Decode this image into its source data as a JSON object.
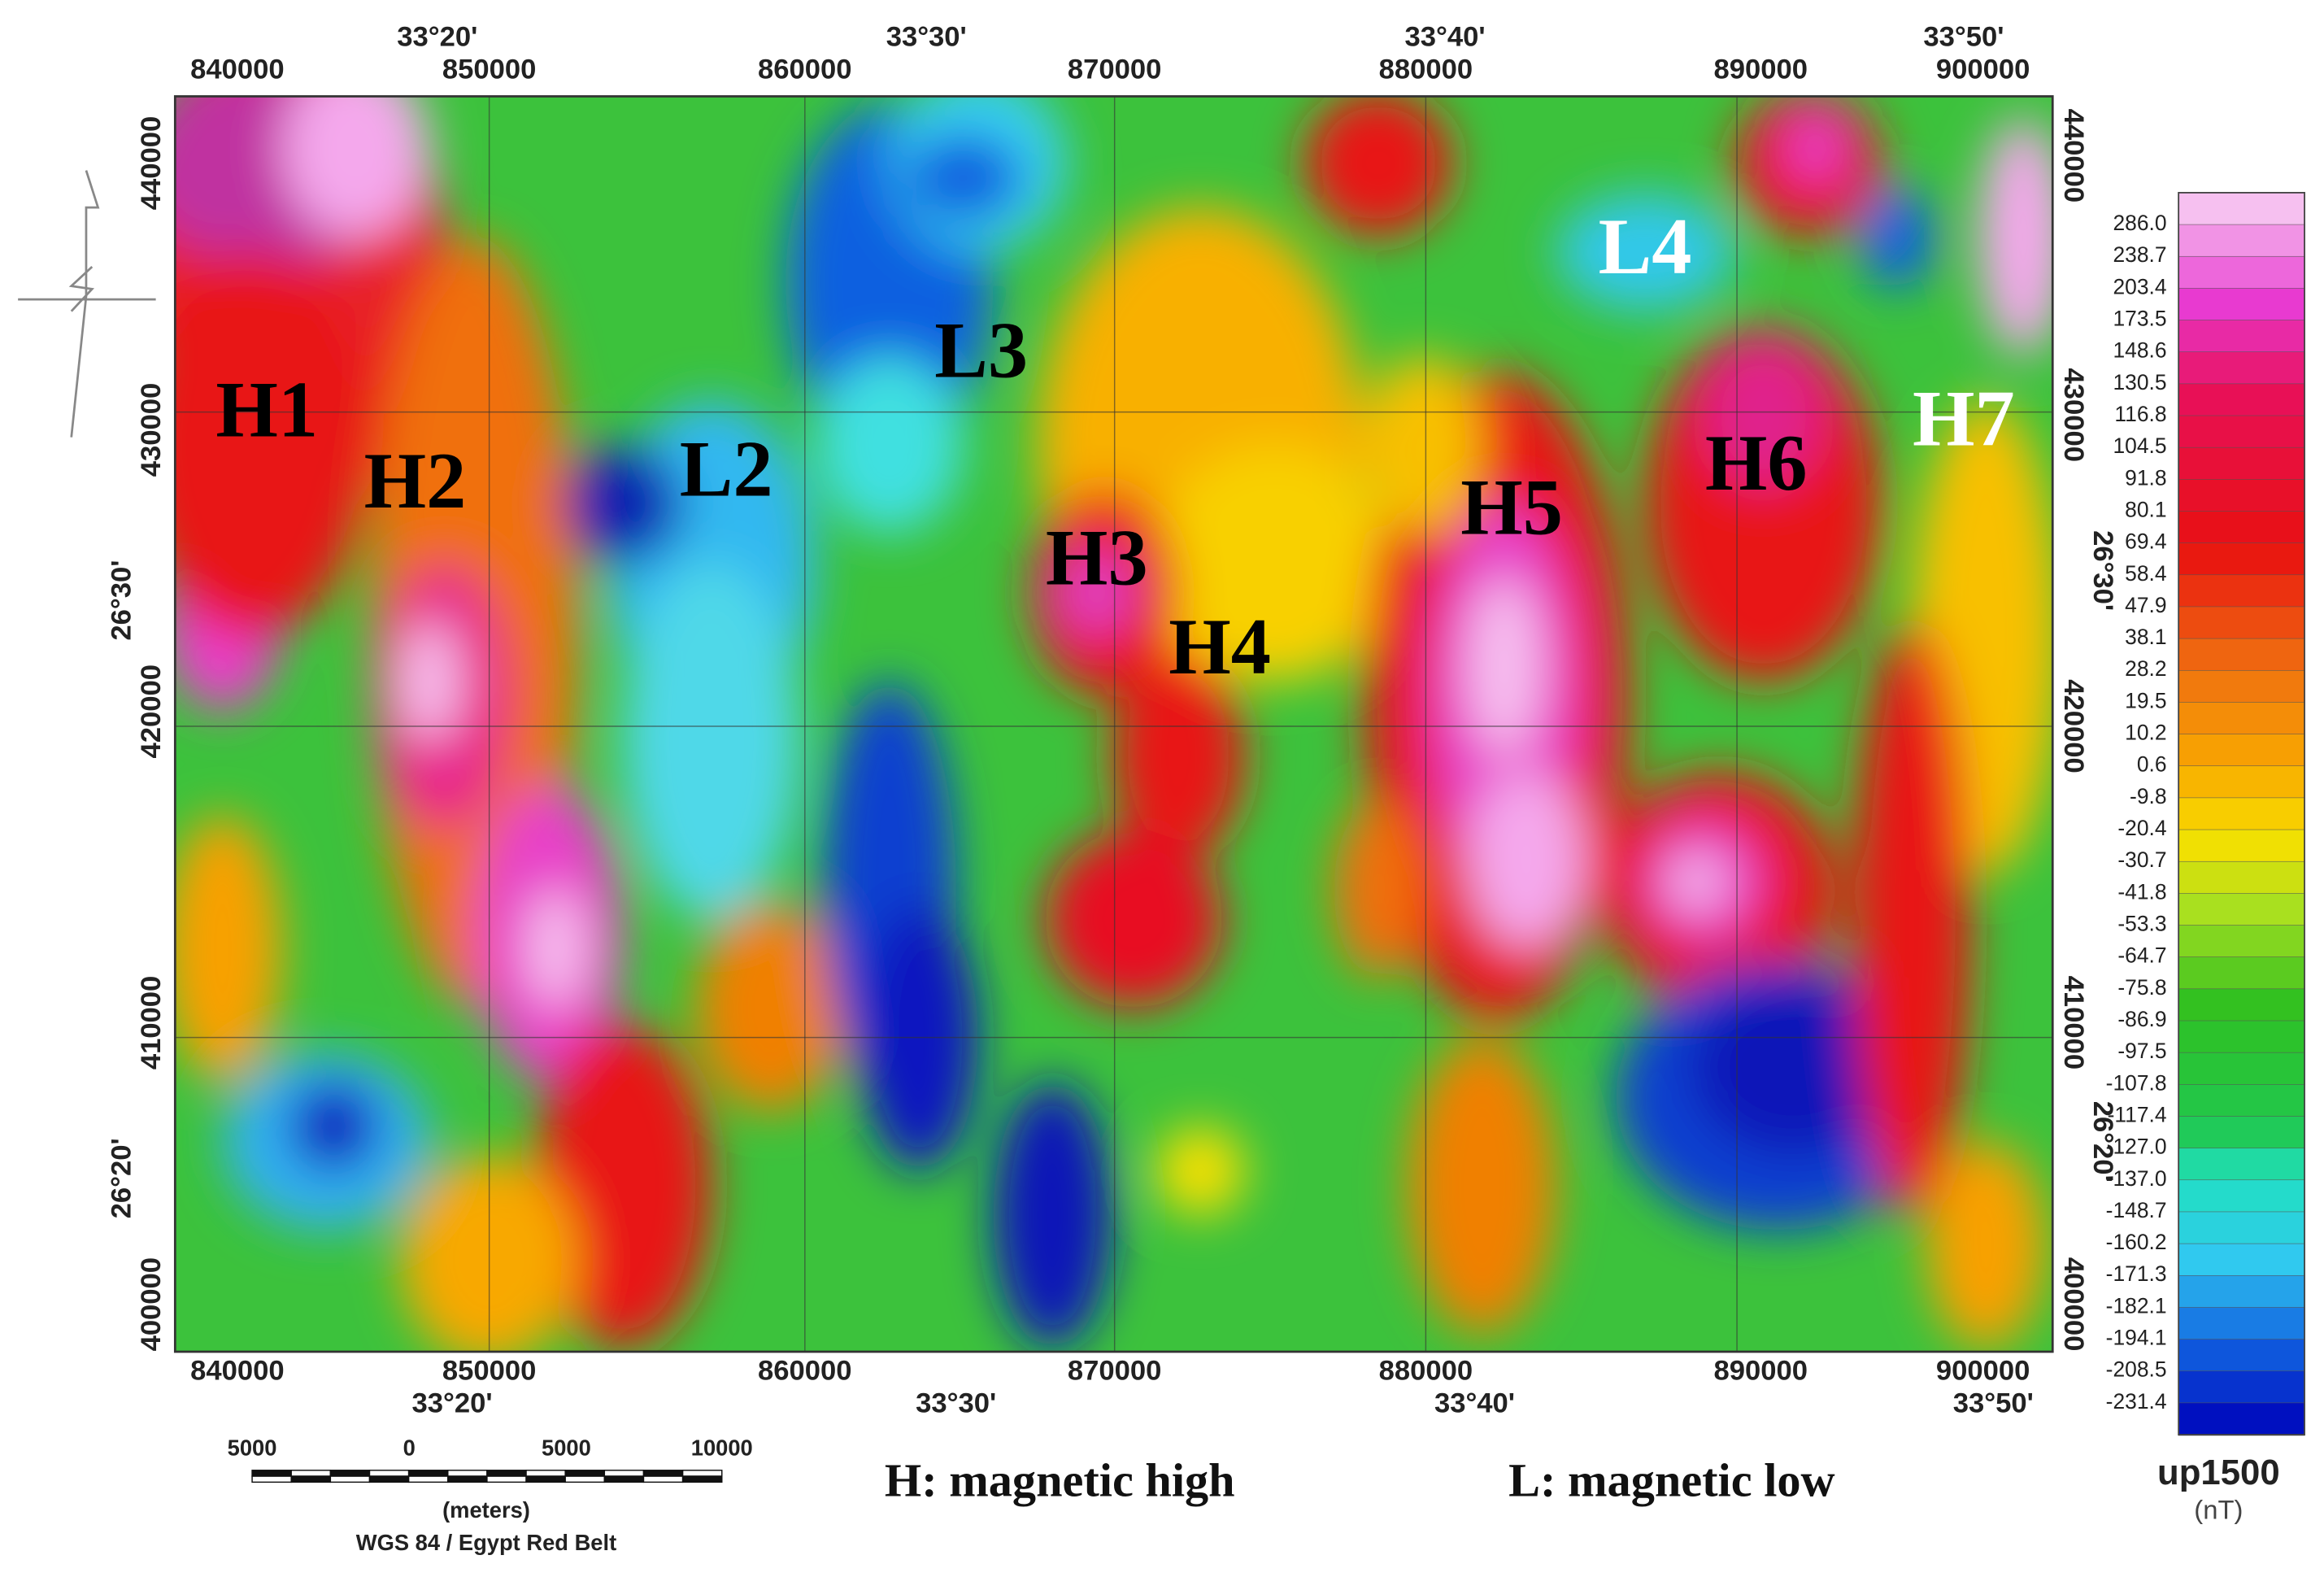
{
  "map": {
    "eastings_top": [
      "840000",
      "850000",
      "860000",
      "870000",
      "880000",
      "890000",
      "900000"
    ],
    "eastings_bottom": [
      "840000",
      "850000",
      "860000",
      "870000",
      "880000",
      "890000",
      "900000"
    ],
    "northings_left": [
      "440000",
      "430000",
      "420000",
      "410000",
      "400000"
    ],
    "northings_right": [
      "440000",
      "430000",
      "420000",
      "410000",
      "400000"
    ],
    "longitudes_top": [
      "33°20'",
      "33°30'",
      "33°40'",
      "33°50'"
    ],
    "longitudes_bottom": [
      "33°20'",
      "33°30'",
      "33°40'",
      "33°50'"
    ],
    "latitudes_left": [
      "26°30'",
      "26°20'"
    ],
    "latitudes_right": [
      "26°30'",
      "26°20'"
    ],
    "anomalies": [
      {
        "label": "H1",
        "color": "#000000"
      },
      {
        "label": "H2",
        "color": "#000000"
      },
      {
        "label": "L2",
        "color": "#000000"
      },
      {
        "label": "L3",
        "color": "#000000"
      },
      {
        "label": "H3",
        "color": "#000000"
      },
      {
        "label": "H4",
        "color": "#000000"
      },
      {
        "label": "H5",
        "color": "#000000"
      },
      {
        "label": "H6",
        "color": "#000000"
      },
      {
        "label": "H7",
        "color": "#ffffff"
      },
      {
        "label": "L4",
        "color": "#ffffff"
      }
    ],
    "legend": [
      "H: magnetic high",
      "L: magnetic low"
    ]
  },
  "colorbar": {
    "title": "up1500",
    "unit": "(nT)",
    "labels": [
      "286.0",
      "238.7",
      "203.4",
      "173.5",
      "148.6",
      "130.5",
      "116.8",
      "104.5",
      "91.8",
      "80.1",
      "69.4",
      "58.4",
      "47.9",
      "38.1",
      "28.2",
      "19.5",
      "10.2",
      "0.6",
      "-9.8",
      "-20.4",
      "-30.7",
      "-41.8",
      "-53.3",
      "-64.7",
      "-75.8",
      "-86.9",
      "-97.5",
      "-107.8",
      "-117.4",
      "-127.0",
      "-137.0",
      "-148.7",
      "-160.2",
      "-171.3",
      "-182.1",
      "-194.1",
      "-208.5",
      "-231.4"
    ]
  },
  "scale_bar": {
    "labels": [
      "5000",
      "0",
      "5000",
      "10000"
    ],
    "unit": "(meters)",
    "datum": "WGS 84 / Egypt Red Belt"
  }
}
